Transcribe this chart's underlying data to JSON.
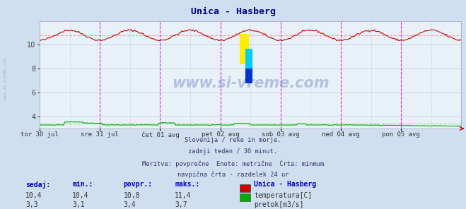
{
  "title": "Unica - Hasberg",
  "bg_color": "#d0dff0",
  "plot_bg_color": "#e8f0f8",
  "x_labels": [
    "tor 30 jul",
    "sre 31 jul",
    "čet 01 avg",
    "pet 02 avg",
    "sob 03 avg",
    "ned 04 avg",
    "pon 05 avg"
  ],
  "y_ticks": [
    4,
    6,
    8,
    10
  ],
  "y_min": 3.0,
  "y_max": 12.0,
  "temp_min": 10.4,
  "temp_max": 11.4,
  "temp_avg": 10.8,
  "temp_current": 10.4,
  "flow_min": 3.1,
  "flow_max": 3.7,
  "flow_avg": 3.4,
  "flow_current": 3.3,
  "n_points": 336,
  "subtitle_lines": [
    "Slovenija / reke in morje.",
    "zadnji teden / 30 minut.",
    "Meritve: povprečne  Enote: metrične  Črta: minmum",
    "navpična črta - razdelek 24 ur"
  ],
  "stats_headers": [
    "sedaj:",
    "min.:",
    "povpr.:",
    "maks.:"
  ],
  "legend_title": "Unica - Hasberg",
  "legend_items": [
    {
      "label": "temperatura[C]",
      "color": "#cc0000"
    },
    {
      "label": "pretok[m3/s]",
      "color": "#00aa00"
    }
  ],
  "watermark_text": "www.si-vreme.com",
  "sidebar_text": "www.si-vreme.com",
  "temp_color": "#cc0000",
  "flow_color": "#00aa00",
  "avg_line_color": "#ff9999",
  "avg_flow_color": "#99dd99",
  "vline_color": "#dd00dd",
  "grid_color": "#c0c8d8",
  "title_color": "#000080",
  "text_color": "#333366",
  "header_color": "#0000cc"
}
